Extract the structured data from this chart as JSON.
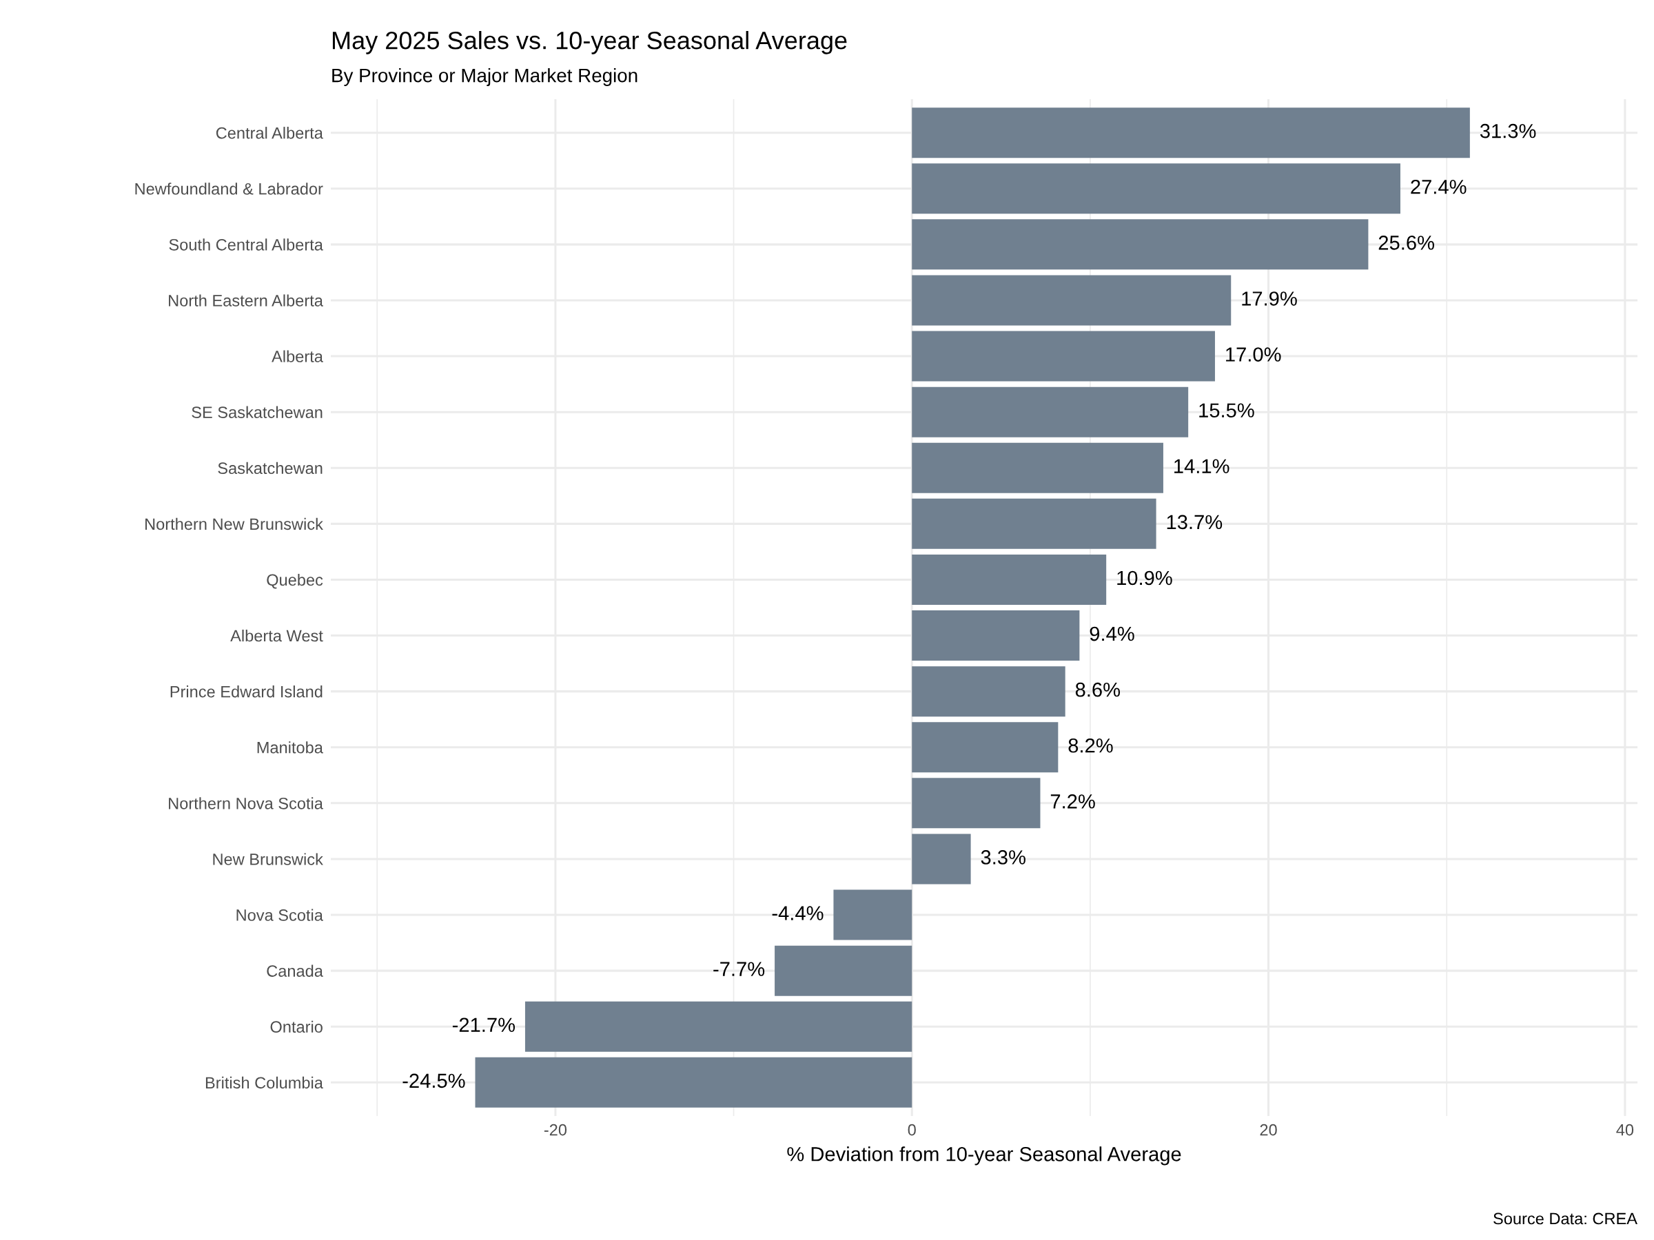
{
  "chart_data": {
    "type": "bar",
    "orientation": "horizontal",
    "title": "May 2025 Sales vs. 10-year Seasonal Average",
    "subtitle": "By Province or Major Market Region",
    "xlabel": "% Deviation from 10-year Seasonal Average",
    "categories": [
      "Central Alberta",
      "Newfoundland & Labrador",
      "South Central Alberta",
      "North Eastern Alberta",
      "Alberta",
      "SE Saskatchewan",
      "Saskatchewan",
      "Northern New Brunswick",
      "Quebec",
      "Alberta West",
      "Prince Edward Island",
      "Manitoba",
      "Northern Nova Scotia",
      "New Brunswick",
      "Nova Scotia",
      "Canada",
      "Ontario",
      "British Columbia"
    ],
    "values": [
      31.3,
      27.4,
      25.6,
      17.9,
      17.0,
      15.5,
      14.1,
      13.7,
      10.9,
      9.4,
      8.6,
      8.2,
      7.2,
      3.3,
      -4.4,
      -7.7,
      -21.7,
      -24.5
    ],
    "value_labels": [
      "31.3%",
      "27.4%",
      "25.6%",
      "17.9%",
      "17.0%",
      "15.5%",
      "14.1%",
      "13.7%",
      "10.9%",
      "9.4%",
      "8.6%",
      "8.2%",
      "7.2%",
      "3.3%",
      "-4.4%",
      "-7.7%",
      "-21.7%",
      "-24.5%"
    ],
    "color": "#708090",
    "xlim": [
      -32.6,
      40.7
    ],
    "xticks": [
      {
        "value": -30,
        "label": null
      },
      -20,
      {
        "value": -10,
        "label": null
      },
      0,
      {
        "value": 10,
        "label": null
      },
      20,
      {
        "value": 30,
        "label": null
      },
      40
    ],
    "grid": true,
    "annotations": [
      "Source Data: CREA"
    ]
  }
}
